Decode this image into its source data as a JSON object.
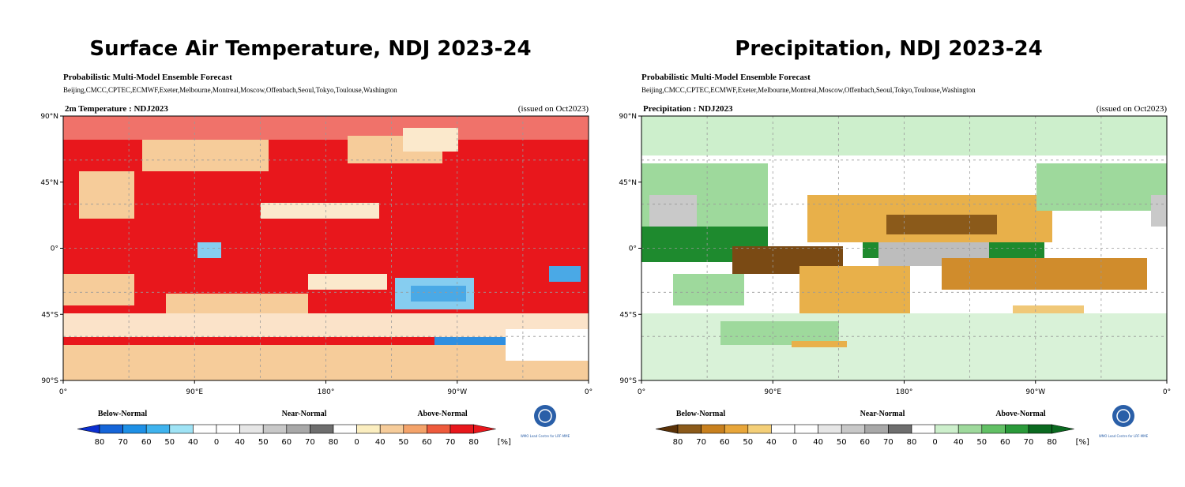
{
  "panels": [
    {
      "title": "Surface Air Temperature, NDJ 2023-24",
      "subtitle": "Probabilistic Multi-Model Ensemble Forecast",
      "centers": "Beijing,CMCC,CPTEC,ECMWF,Exeter,Melbourne,Montreal,Moscow,Offenbach,Seoul,Tokyo,Toulouse,Washington",
      "map_label": "2m Temperature : NDJ2023",
      "issued": "(issued on Oct2023)",
      "lat_labels": [
        "90°N",
        "45°N",
        "0°",
        "45°S",
        "90°S"
      ],
      "lon_labels": [
        "0°",
        "90°E",
        "180°",
        "90°W",
        "0°"
      ],
      "legend": {
        "categories": [
          "Below-Normal",
          "Near-Normal",
          "Above-Normal"
        ],
        "ticks": [
          "80",
          "70",
          "60",
          "50",
          "40",
          "0",
          "40",
          "50",
          "60",
          "70",
          "80",
          "0",
          "40",
          "50",
          "60",
          "70",
          "80"
        ],
        "unit": "[%]"
      },
      "logo_text": "WMO Lead Centre for LRF-MME"
    },
    {
      "title": "Precipitation, NDJ 2023-24",
      "subtitle": "Probabilistic Multi-Model Ensemble Forecast",
      "centers": "Beijing,CMCC,CPTEC,ECMWF,Exeter,Melbourne,Montreal,Moscow,Offenbach,Seoul,Tokyo,Toulouse,Washington",
      "map_label": "Precipitation : NDJ2023",
      "issued": "(issued on Oct2023)",
      "lat_labels": [
        "90°N",
        "45°N",
        "0°",
        "45°S",
        "90°S"
      ],
      "lon_labels": [
        "0°",
        "90°E",
        "180°",
        "90°W",
        "0°"
      ],
      "legend": {
        "categories": [
          "Below-Normal",
          "Near-Normal",
          "Above-Normal"
        ],
        "ticks": [
          "80",
          "70",
          "60",
          "50",
          "40",
          "0",
          "40",
          "50",
          "60",
          "70",
          "80",
          "0",
          "40",
          "50",
          "60",
          "70",
          "80"
        ],
        "unit": "[%]"
      },
      "logo_text": "WMO Lead Centre for LRF-MME"
    }
  ]
}
